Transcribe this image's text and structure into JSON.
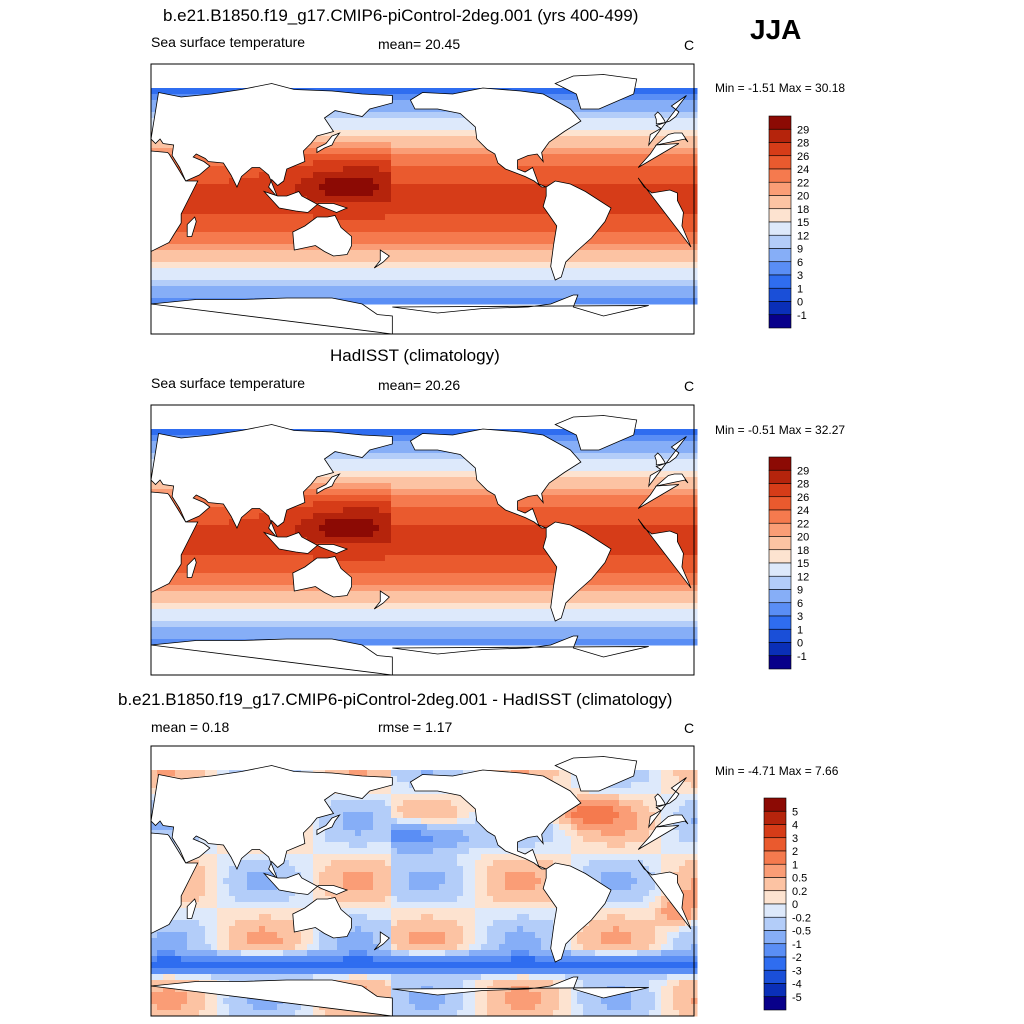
{
  "season": "JJA",
  "palettes": {
    "abs": [
      "#08008a",
      "#0a2fb8",
      "#1a4fd8",
      "#2f6df0",
      "#5a8ef5",
      "#86aef7",
      "#b3cdf9",
      "#dde9fb",
      "#fde3d0",
      "#fcc3a3",
      "#fa9d76",
      "#f57a4e",
      "#ea5a2e",
      "#d63c18",
      "#b5240c",
      "#8c0a04"
    ],
    "diff": [
      "#08008a",
      "#0a2fb8",
      "#1a4fd8",
      "#2f6df0",
      "#5a8ef5",
      "#86aef7",
      "#b3cdf9",
      "#dde9fb",
      "#fde3d0",
      "#fcc3a3",
      "#fa9d76",
      "#f57a4e",
      "#ea5a2e",
      "#d63c18",
      "#b5240c",
      "#8c0a04"
    ],
    "land": "#ffffff",
    "coast": "#000000"
  },
  "chart_data": [
    {
      "type": "heatmap",
      "title": "b.e21.B1850.f19_g17.CMIP6-piControl-2deg.001 (yrs 400-499)",
      "left_label": "Sea surface temperature",
      "center_label": "mean=  20.45",
      "units": "C",
      "minmax_text": "Min =  -1.51 Max =  30.18",
      "colorbar": {
        "labels": [
          "29",
          "28",
          "26",
          "24",
          "22",
          "20",
          "18",
          "15",
          "12",
          "9",
          "6",
          "3",
          "1",
          "0",
          "-1"
        ]
      }
    },
    {
      "type": "heatmap",
      "title": "HadISST (climatology)",
      "left_label": "Sea surface temperature",
      "center_label": "mean=  20.26",
      "units": "C",
      "minmax_text": "Min =  -0.51 Max =  32.27",
      "colorbar": {
        "labels": [
          "29",
          "28",
          "26",
          "24",
          "22",
          "20",
          "18",
          "15",
          "12",
          "9",
          "6",
          "3",
          "1",
          "0",
          "-1"
        ]
      }
    },
    {
      "type": "heatmap",
      "title": "b.e21.B1850.f19_g17.CMIP6-piControl-2deg.001 - HadISST (climatology)",
      "left_label": "mean =   0.18",
      "center_label": "rmse =   1.17",
      "units": "C",
      "minmax_text": "Min =  -4.71 Max =   7.66",
      "colorbar": {
        "labels": [
          "5",
          "4",
          "3",
          "2",
          "1",
          "0.5",
          "0.2",
          "0",
          "-0.2",
          "-0.5",
          "-1",
          "-2",
          "-3",
          "-4",
          "-5"
        ]
      }
    }
  ]
}
